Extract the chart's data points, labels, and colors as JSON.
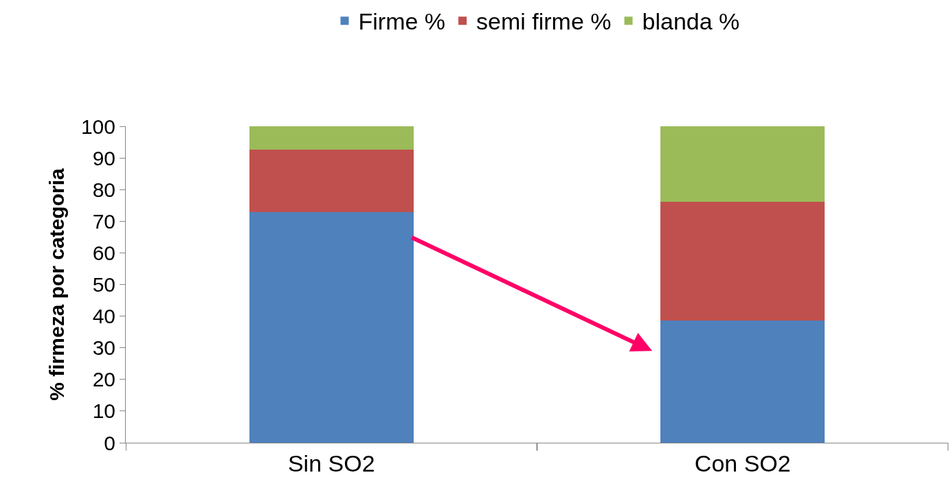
{
  "chart_data": {
    "type": "bar",
    "stacked": true,
    "ylabel": "% firmeza por categoria",
    "categories": [
      "Sin SO2",
      "Con SO2"
    ],
    "series": [
      {
        "name": "Firme %",
        "color": "#4f81bd",
        "values": [
          72.8,
          38.6
        ]
      },
      {
        "name": "semi firme %",
        "color": "#c0504d",
        "values": [
          19.9,
          37.5
        ]
      },
      {
        "name": "blanda %",
        "color": "#9bbb59",
        "values": [
          7.3,
          23.9
        ]
      }
    ],
    "ylim": [
      0,
      100
    ],
    "yticks": [
      0,
      10,
      20,
      30,
      40,
      50,
      60,
      70,
      80,
      90,
      100
    ],
    "legend": "top"
  }
}
